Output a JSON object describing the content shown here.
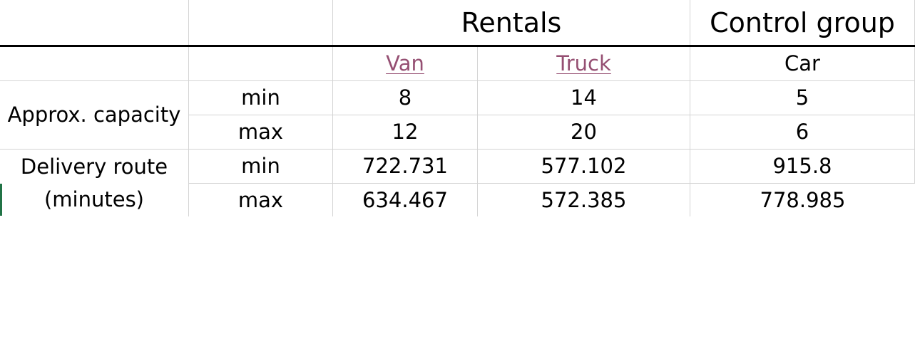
{
  "sheet": {
    "group_headers": {
      "rentals": "Rentals",
      "control_group": "Control group"
    },
    "vehicles": {
      "van": "Van",
      "truck": "Truck",
      "car": "Car"
    },
    "capacity": {
      "label": "Approx. capacity",
      "min_label": "min",
      "max_label": "max",
      "min": {
        "van": "8",
        "truck": "14",
        "car": "5"
      },
      "max": {
        "van": "12",
        "truck": "20",
        "car": "6"
      }
    },
    "route": {
      "label_line1": "Delivery route",
      "label_line2": "(minutes)",
      "min_label": "min",
      "max_label": "max",
      "min": {
        "van": "722.731",
        "truck": "577.102",
        "car": "915.8"
      },
      "max": {
        "van": "634.467",
        "truck": "572.385",
        "car": "778.985"
      }
    }
  },
  "colors": {
    "hyperlink": "#954f72",
    "gridline": "#d4d4d4",
    "selection_marker": "#217346"
  }
}
